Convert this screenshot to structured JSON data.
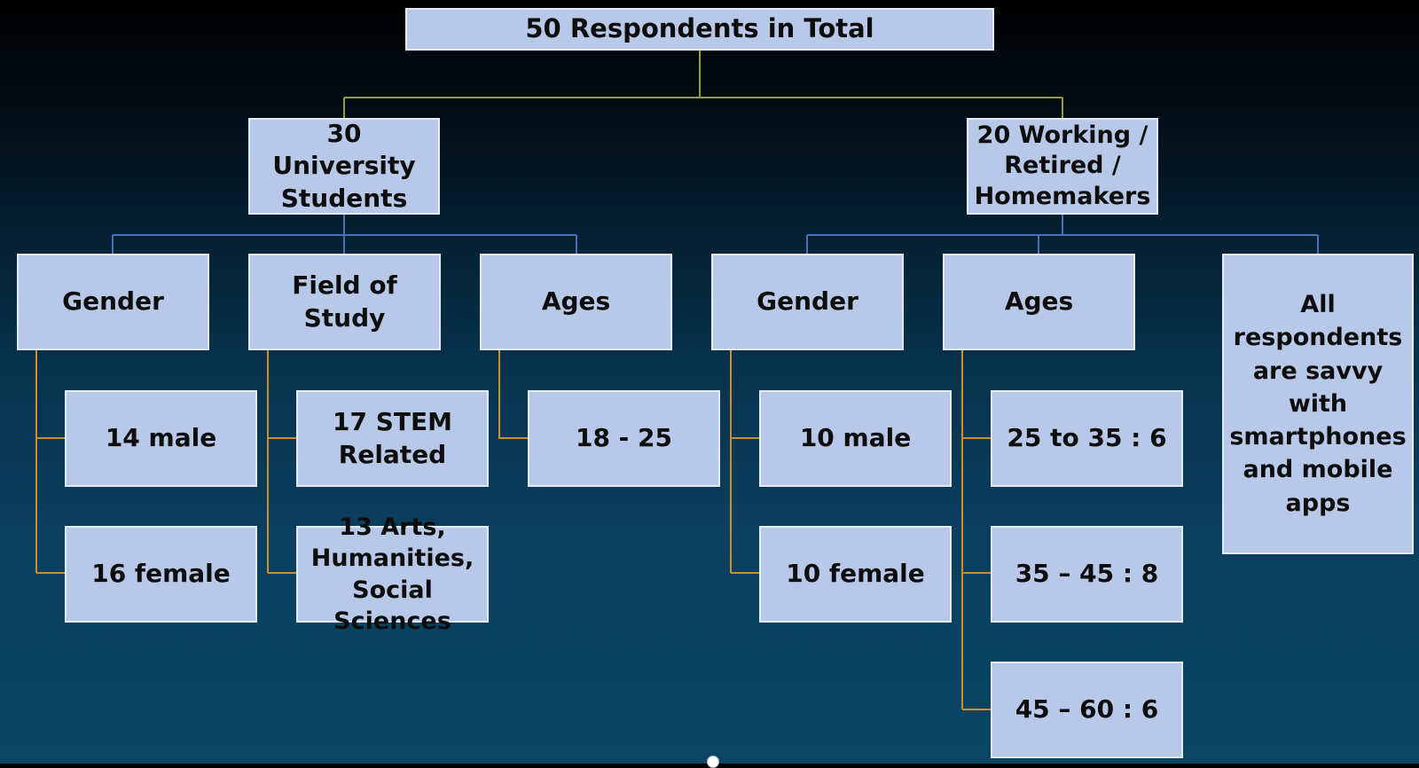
{
  "root": "50 Respondents in Total",
  "branches": [
    {
      "title": "30 University Students",
      "categories": [
        {
          "label": "Gender",
          "items": [
            "14 male",
            "16 female"
          ]
        },
        {
          "label": "Field of Study",
          "items": [
            "17 STEM Related",
            "13 Arts, Humanities, Social Sciences"
          ]
        },
        {
          "label": "Ages",
          "items": [
            "18 - 25"
          ]
        }
      ]
    },
    {
      "title": "20 Working / Retired / Homemakers",
      "categories": [
        {
          "label": "Gender",
          "items": [
            "10 male",
            "10 female"
          ]
        },
        {
          "label": "Ages",
          "items": [
            "25 to 35 : 6",
            "35 – 45 : 8",
            "45 – 60 : 6"
          ]
        },
        {
          "label": "All respondents are savvy with smartphones and mobile apps",
          "items": []
        }
      ]
    }
  ],
  "colors": {
    "box_fill": "#b8c8e8",
    "box_border": "#e4ebf7",
    "root_connector": "#8fa13a",
    "branch_connector": "#4a72b8",
    "leaf_connector": "#c9902e",
    "background_top": "#000000",
    "background_bottom": "#0b4665"
  }
}
